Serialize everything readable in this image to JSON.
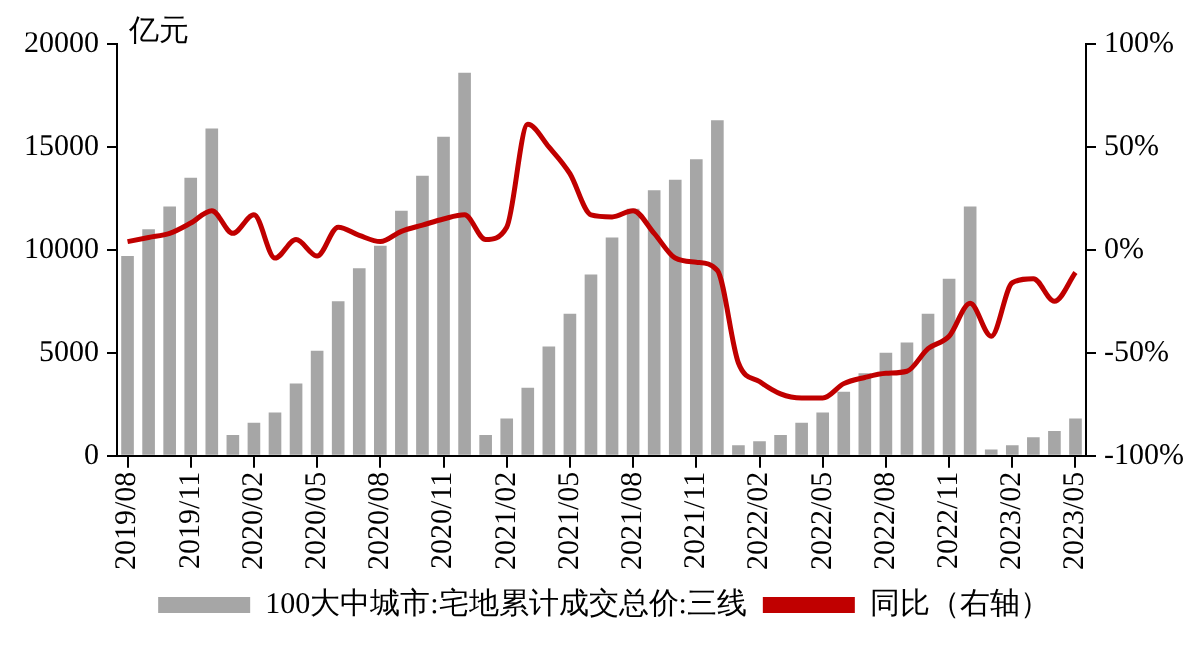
{
  "chart_data": {
    "type": "bar",
    "ylabel": "亿元",
    "categories": [
      "2019/08",
      null,
      null,
      "2019/11",
      null,
      null,
      "2020/02",
      null,
      null,
      "2020/05",
      null,
      null,
      "2020/08",
      null,
      null,
      "2020/11",
      null,
      null,
      "2021/02",
      null,
      null,
      "2021/05",
      null,
      null,
      "2021/08",
      null,
      null,
      "2021/11",
      null,
      null,
      "2022/02",
      null,
      null,
      "2022/05",
      null,
      null,
      "2022/08",
      null,
      null,
      "2022/11",
      null,
      null,
      "2023/02",
      null,
      null,
      "2023/05"
    ],
    "series": [
      {
        "name": "100大中城市:宅地累计成交总价:三线",
        "color": "#a6a6a6",
        "values": [
          9700,
          11000,
          12100,
          13500,
          15900,
          1000,
          1600,
          2100,
          3500,
          5100,
          7500,
          9100,
          10200,
          11900,
          13600,
          15500,
          18600,
          1000,
          1800,
          3300,
          5300,
          6900,
          8800,
          10600,
          12000,
          12900,
          13400,
          14400,
          16300,
          500,
          700,
          1000,
          1600,
          2100,
          3100,
          4000,
          5000,
          5500,
          6900,
          8600,
          12100,
          300,
          500,
          900,
          1200,
          1800
        ]
      },
      {
        "name": "同比（右轴）",
        "type": "line",
        "axis": "y2",
        "color": "#c00000",
        "values": [
          4,
          6,
          8,
          13,
          19,
          8,
          17,
          -4,
          5,
          -3,
          11,
          7,
          4,
          9,
          12,
          15,
          17,
          5,
          11,
          61,
          50,
          37,
          17,
          16,
          19,
          8,
          -4,
          -6,
          -10,
          -55,
          -64,
          -70,
          -72,
          -72,
          -65,
          -62,
          -60,
          -59,
          -48,
          -42,
          -26,
          -42,
          -16,
          -14,
          -25,
          -11
        ]
      }
    ],
    "ylim": [
      0,
      20000
    ],
    "yticks": [
      0,
      5000,
      10000,
      15000,
      20000
    ],
    "y2lim": [
      -100,
      100
    ],
    "y2ticks": [
      {
        "value": -100,
        "label": "-100%"
      },
      {
        "value": -50,
        "label": "-50%"
      },
      {
        "value": 0,
        "label": "0%"
      },
      {
        "value": 50,
        "label": "50%"
      },
      {
        "value": 100,
        "label": "100%"
      }
    ],
    "grid": false,
    "legend": "bottom",
    "marker": "none",
    "line_style": "solid"
  }
}
